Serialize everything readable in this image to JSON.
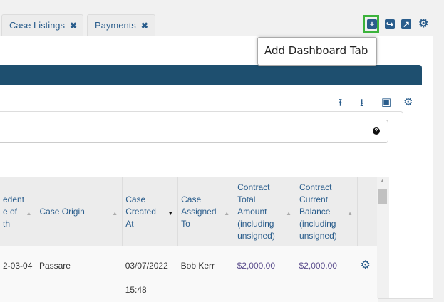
{
  "tabs": [
    {
      "label": "Case Listings",
      "close": "✖"
    },
    {
      "label": "Payments",
      "close": "✖"
    }
  ],
  "tooltip": "Add Dashboard Tab",
  "toolbar_icons": [
    "plus-square-icon",
    "share-icon",
    "external-link-icon",
    "gear-icon"
  ],
  "panel_icons": [
    "upload-icon",
    "download-icon",
    "archive-icon",
    "gear-icon"
  ],
  "search": {
    "value": "",
    "help": "?"
  },
  "table": {
    "headers": [
      "edent\ne of\nth",
      "Case Origin",
      "Case Created At",
      "Case Assigned To",
      "Contract Total Amount (including unsigned)",
      "Contract Current Balance (including unsigned)",
      ""
    ],
    "rows": [
      {
        "col0": "2-03-04",
        "origin": "Passare",
        "created": "03/07/2022 15:48",
        "assigned": "Bob Kerr",
        "total": "$2,000.00",
        "balance": "$2,000.00"
      }
    ]
  },
  "colors": {
    "accent": "#2a5d8c",
    "banner": "#1e4f6f",
    "highlight": "#3cb33c"
  }
}
